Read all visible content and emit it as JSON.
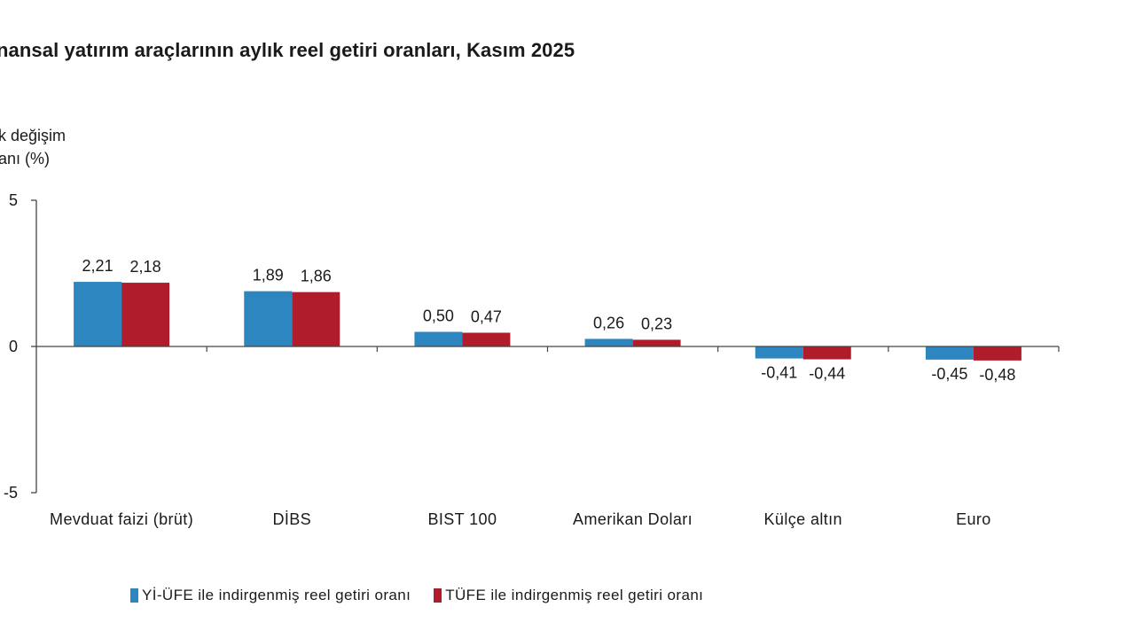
{
  "chart_data": {
    "type": "bar",
    "title": "nansal yatırım araçlarının aylık reel getiri oranları, Kasım 2025",
    "ylabel_lines": [
      "k değişim",
      "anı (%)"
    ],
    "xlabel": "",
    "categories": [
      "Mevduat faizi (brüt)",
      "DİBS",
      "BIST 100",
      "Amerikan Doları",
      "Külçe altın",
      "Euro"
    ],
    "series": [
      {
        "name": "Yİ-ÜFE ile indirgenmiş reel getiri oranı",
        "color": "#2e86c1",
        "values": [
          2.21,
          1.89,
          0.5,
          0.26,
          -0.41,
          -0.45
        ],
        "labels": [
          "2,21",
          "1,89",
          "0,50",
          "0,26",
          "-0,41",
          "-0,45"
        ]
      },
      {
        "name": "TÜFE ile indirgenmiş reel getiri oranı",
        "color": "#b01c2a",
        "values": [
          2.18,
          1.86,
          0.47,
          0.23,
          -0.44,
          -0.48
        ],
        "labels": [
          "2,18",
          "1,86",
          "0,47",
          "0,23",
          "-0,44",
          "-0,48"
        ]
      }
    ],
    "ylim": [
      -5,
      5
    ],
    "yticks": [
      5,
      0,
      -5
    ],
    "ytick_labels": [
      "5",
      "0",
      "-5"
    ],
    "grid": false,
    "legend_position": "bottom"
  }
}
